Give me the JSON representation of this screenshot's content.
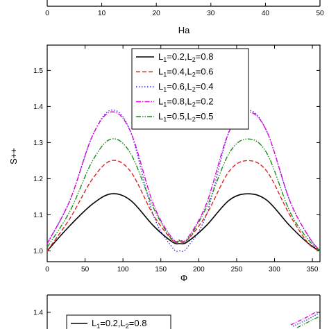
{
  "chart_data": [
    {
      "type": "line",
      "xlabel": "Ha",
      "ylabel": "",
      "xlim": [
        0,
        50
      ],
      "xticks": [
        "0",
        "10",
        "20",
        "30",
        "40",
        "50"
      ],
      "ylim": null,
      "yticks": [],
      "series": [],
      "legend": "none"
    },
    {
      "type": "line",
      "xlabel": "Φ",
      "ylabel": "S++",
      "xlim": [
        0,
        360
      ],
      "ylim": [
        0.97,
        1.57
      ],
      "xticks": [
        "0",
        "50",
        "100",
        "150",
        "200",
        "250",
        "300",
        "350"
      ],
      "yticks": [
        "1.0",
        "1.1",
        "1.2",
        "1.3",
        "1.4",
        "1.5"
      ],
      "legend": "top-center",
      "grid": false,
      "x": [
        0,
        30,
        60,
        85,
        110,
        140,
        165,
        175,
        185,
        210,
        240,
        265,
        290,
        320,
        345,
        360
      ],
      "series": [
        {
          "name": "L1=0.2,L2=0.8",
          "color": "#000000",
          "dash": "solid",
          "values": [
            1.0,
            1.07,
            1.13,
            1.158,
            1.14,
            1.07,
            1.025,
            1.02,
            1.025,
            1.07,
            1.14,
            1.158,
            1.14,
            1.07,
            1.02,
            1.0
          ]
        },
        {
          "name": "L1=0.4,L2=0.6",
          "color": "#e0201c",
          "dash": "dash",
          "values": [
            1.0,
            1.09,
            1.2,
            1.25,
            1.22,
            1.1,
            1.03,
            1.025,
            1.03,
            1.1,
            1.22,
            1.25,
            1.22,
            1.1,
            1.02,
            1.0
          ]
        },
        {
          "name": "L1=0.6,L2=0.4",
          "color": "#2a2ae0",
          "dash": "dot",
          "values": [
            1.02,
            1.14,
            1.32,
            1.39,
            1.33,
            1.1,
            1.01,
            1.0,
            1.01,
            1.1,
            1.33,
            1.39,
            1.33,
            1.14,
            1.04,
            1.0
          ]
        },
        {
          "name": "L1=0.8,L2=0.2",
          "color": "#e000e0",
          "dash": "dashdot",
          "values": [
            1.02,
            1.14,
            1.32,
            1.385,
            1.33,
            1.13,
            1.035,
            1.03,
            1.035,
            1.13,
            1.33,
            1.385,
            1.33,
            1.14,
            1.04,
            1.0
          ]
        },
        {
          "name": "L1=0.5,L2=0.5",
          "color": "#1a8a1a",
          "dash": "dashdotdot",
          "values": [
            1.01,
            1.11,
            1.25,
            1.31,
            1.27,
            1.12,
            1.03,
            1.028,
            1.03,
            1.12,
            1.27,
            1.31,
            1.27,
            1.11,
            1.03,
            1.0
          ]
        }
      ]
    },
    {
      "type": "line",
      "xlabel": "",
      "ylabel": "",
      "ylim": [
        1.38,
        1.42
      ],
      "yticks": [
        "1.4"
      ],
      "legend": "top-left",
      "legend_visible": [
        "L1=0.2,L2=0.8"
      ],
      "series": [
        {
          "name": "L1=0.2,L2=0.8",
          "color": "#000000",
          "dash": "solid",
          "values": []
        }
      ]
    }
  ]
}
